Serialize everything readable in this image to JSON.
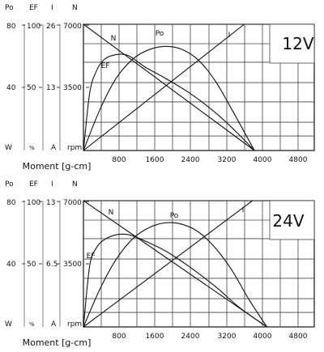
{
  "chart_data": [
    {
      "type": "line",
      "voltage_label": "12V",
      "xlabel": "Moment [g-cm]",
      "x_ticks": [
        "800",
        "1600",
        "2400",
        "3200",
        "4000",
        "4800"
      ],
      "xlim": [
        0,
        5600
      ],
      "axes": {
        "Po": {
          "header": "Po",
          "unit": "W",
          "ticks": [
            "80",
            "40"
          ],
          "range": [
            0,
            80
          ]
        },
        "EF": {
          "header": "EF",
          "unit": "%",
          "ticks": [
            "100",
            "50"
          ],
          "range": [
            0,
            100
          ]
        },
        "I": {
          "header": "I",
          "unit": "A",
          "ticks": [
            "26",
            "13"
          ],
          "range": [
            0,
            26
          ]
        },
        "N": {
          "header": "N",
          "unit": "rpm",
          "ticks": [
            "7000",
            "3500"
          ],
          "range": [
            0,
            7000
          ]
        }
      },
      "series": [
        {
          "name": "N",
          "axis": "N",
          "points": [
            [
              0,
              7000
            ],
            [
              4150,
              0
            ]
          ]
        },
        {
          "name": "I",
          "axis": "I",
          "points": [
            [
              0,
              0
            ],
            [
              3900,
              26
            ]
          ]
        },
        {
          "name": "Po",
          "axis": "Po",
          "points": [
            [
              0,
              0
            ],
            [
              400,
              26
            ],
            [
              800,
              46
            ],
            [
              1200,
              58
            ],
            [
              1600,
              64
            ],
            [
              2000,
              66
            ],
            [
              2400,
              64
            ],
            [
              2800,
              57
            ],
            [
              3200,
              44
            ],
            [
              3600,
              26
            ],
            [
              4150,
              0
            ]
          ]
        },
        {
          "name": "EF",
          "axis": "EF",
          "points": [
            [
              0,
              0
            ],
            [
              150,
              45
            ],
            [
              300,
              62
            ],
            [
              500,
              72
            ],
            [
              800,
              76
            ],
            [
              1100,
              75
            ],
            [
              1500,
              66
            ],
            [
              2000,
              57
            ],
            [
              2600,
              45
            ],
            [
              3200,
              30
            ],
            [
              3700,
              15
            ],
            [
              4150,
              0
            ]
          ]
        }
      ]
    },
    {
      "type": "line",
      "voltage_label": "24V",
      "xlabel": "Moment [g-cm]",
      "x_ticks": [
        "800",
        "1600",
        "2400",
        "3200",
        "4000",
        "4800"
      ],
      "xlim": [
        0,
        5600
      ],
      "axes": {
        "Po": {
          "header": "Po",
          "unit": "W",
          "ticks": [
            "80",
            "40"
          ],
          "range": [
            0,
            80
          ]
        },
        "EF": {
          "header": "EF",
          "unit": "%",
          "ticks": [
            "100",
            "50"
          ],
          "range": [
            0,
            100
          ]
        },
        "I": {
          "header": "I",
          "unit": "A",
          "ticks": [
            "13",
            "6.5"
          ],
          "range": [
            0,
            13
          ]
        },
        "N": {
          "header": "N",
          "unit": "rpm",
          "ticks": [
            "7000",
            "3500"
          ],
          "range": [
            0,
            7000
          ]
        }
      },
      "series": [
        {
          "name": "N",
          "axis": "N",
          "points": [
            [
              0,
              7000
            ],
            [
              4450,
              0
            ]
          ]
        },
        {
          "name": "I",
          "axis": "I",
          "points": [
            [
              0,
              0
            ],
            [
              4100,
              13
            ]
          ]
        },
        {
          "name": "Po",
          "axis": "Po",
          "points": [
            [
              0,
              0
            ],
            [
              400,
              24
            ],
            [
              800,
              43
            ],
            [
              1200,
              56
            ],
            [
              1600,
              63
            ],
            [
              2000,
              66
            ],
            [
              2400,
              65
            ],
            [
              2800,
              60
            ],
            [
              3200,
              50
            ],
            [
              3600,
              36
            ],
            [
              4000,
              18
            ],
            [
              4450,
              0
            ]
          ]
        },
        {
          "name": "EF",
          "axis": "EF",
          "points": [
            [
              0,
              0
            ],
            [
              150,
              48
            ],
            [
              300,
              62
            ],
            [
              500,
              69
            ],
            [
              800,
              73
            ],
            [
              1100,
              73
            ],
            [
              1500,
              68
            ],
            [
              2000,
              60
            ],
            [
              2600,
              47
            ],
            [
              3200,
              32
            ],
            [
              3800,
              15
            ],
            [
              4450,
              0
            ]
          ]
        }
      ]
    }
  ]
}
